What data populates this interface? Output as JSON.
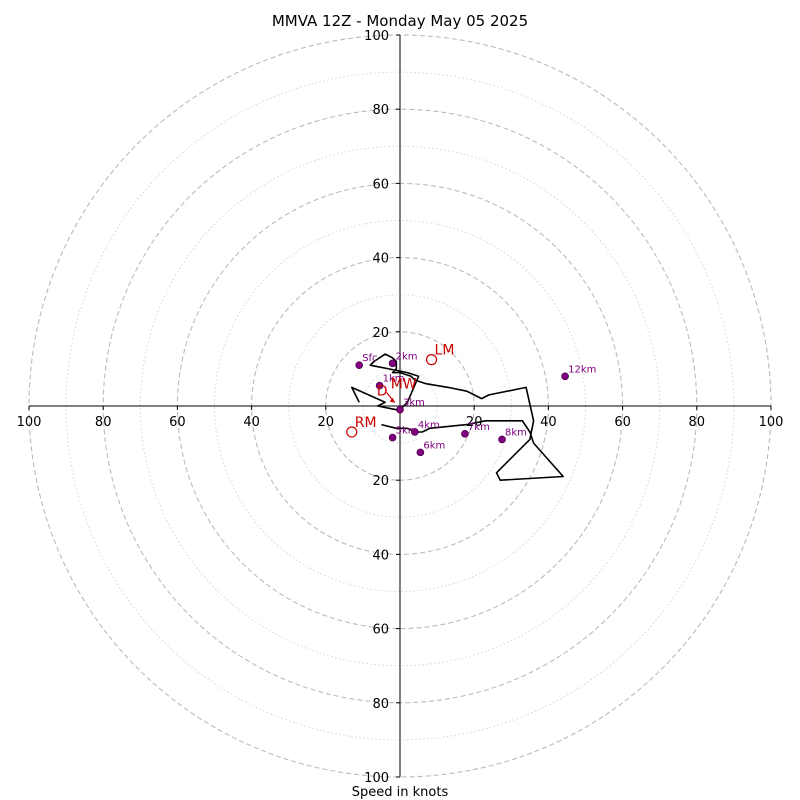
{
  "chart_data": {
    "type": "scatter",
    "title": "MMVA 12Z - Monday May 05 2025",
    "xlabel": "Speed in knots",
    "ylabel": "",
    "xlim": [
      -100,
      100
    ],
    "ylim": [
      -100,
      100
    ],
    "ring_major_step": 20,
    "ring_minor_step": 10,
    "x_tick_labels": [
      "100",
      "80",
      "60",
      "40",
      "20",
      "20",
      "40",
      "60",
      "80",
      "100"
    ],
    "y_tick_labels": [
      "100",
      "80",
      "60",
      "40",
      "20",
      "20",
      "40",
      "60",
      "80",
      "100"
    ],
    "x_tick_values": [
      -100,
      -80,
      -60,
      -40,
      -20,
      20,
      40,
      60,
      80,
      100
    ],
    "y_tick_values": [
      100,
      80,
      60,
      40,
      20,
      -20,
      -40,
      -60,
      -80,
      -100
    ],
    "grid": true,
    "colors": {
      "hodograph": "#000000",
      "height_marker": "#800080",
      "motion_marker": "#cc0000",
      "grid": "#bbbbbb"
    },
    "series": [
      {
        "type": "line",
        "x": [
          -11,
          -13,
          -4,
          -6,
          -1,
          0,
          2,
          5,
          2,
          -3,
          -8,
          -7,
          -4,
          -2,
          -1,
          -1,
          -2,
          0,
          3,
          4,
          7,
          13,
          18,
          20,
          22,
          24,
          34,
          36,
          35,
          26,
          27,
          44,
          36,
          35,
          33,
          27,
          25,
          23,
          18,
          8,
          6,
          5,
          4,
          2,
          -1,
          -5
        ],
        "y": [
          1,
          5,
          1,
          0,
          -1,
          -1,
          1,
          8,
          9,
          10,
          11,
          12,
          14,
          13,
          12,
          10,
          9,
          9,
          8,
          7,
          6,
          5,
          4,
          3,
          2,
          3,
          5,
          -4,
          -9,
          -18,
          -20,
          -19,
          -10,
          -7,
          -4,
          -4,
          -4,
          -4,
          -5,
          -6,
          -7,
          -7,
          -7,
          -6,
          -6,
          -5
        ]
      }
    ],
    "height_markers": [
      {
        "label": "Sfc",
        "x": -11,
        "y": 11
      },
      {
        "label": "1km",
        "x": -5.5,
        "y": 5.5
      },
      {
        "label": "2km",
        "x": -2,
        "y": 11.5
      },
      {
        "label": "3km",
        "x": 0,
        "y": -1
      },
      {
        "label": "4km",
        "x": 4,
        "y": -7
      },
      {
        "label": "5km",
        "x": -2,
        "y": -8.5
      },
      {
        "label": "6km",
        "x": 5.5,
        "y": -12.5
      },
      {
        "label": "7km",
        "x": 17.5,
        "y": -7.5
      },
      {
        "label": "8km",
        "x": 27.5,
        "y": -9
      },
      {
        "label": "12km",
        "x": 44.5,
        "y": 8
      }
    ],
    "motion_markers": [
      {
        "label": "LM",
        "x": 8.5,
        "y": 12.5,
        "shape": "circle"
      },
      {
        "label": "RM",
        "x": -13,
        "y": -7,
        "shape": "circle"
      },
      {
        "label": "MW",
        "x": -2.5,
        "y": 2,
        "shape": "none"
      },
      {
        "label": "D",
        "x": -2.5,
        "y": 2,
        "shape": "arrow"
      }
    ]
  }
}
